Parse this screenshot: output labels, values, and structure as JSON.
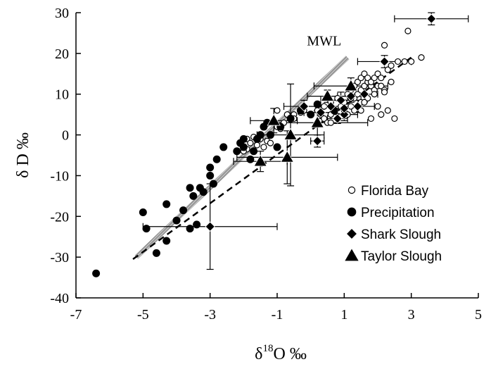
{
  "chart_data": {
    "type": "scatter",
    "xlabel_main": "δ",
    "xlabel_sup": "18",
    "xlabel_rest": "O  ‰",
    "ylabel": "δ D ‰",
    "xlim": [
      -7,
      5
    ],
    "ylim": [
      -40,
      30
    ],
    "xticks": [
      -7,
      -5,
      -3,
      -1,
      1,
      3,
      5
    ],
    "yticks": [
      -40,
      -30,
      -20,
      -10,
      0,
      10,
      20,
      30
    ],
    "grid": false,
    "legend_position": "bottom-right",
    "annotations": [
      {
        "text": "MWL",
        "x": 0.4,
        "y": 22
      }
    ],
    "lines": [
      {
        "name": "MWL",
        "style": "hatched-band",
        "x": [
          -5.2,
          1.1
        ],
        "y": [
          -30,
          19
        ]
      },
      {
        "name": "evaporation-line",
        "style": "dashed",
        "x": [
          -5.3,
          3.0
        ],
        "y": [
          -30.5,
          19
        ]
      }
    ],
    "series": [
      {
        "name": "Florida Bay",
        "marker": "open-circle",
        "points": [
          [
            -1.9,
            -1
          ],
          [
            -1.8,
            -2
          ],
          [
            -1.7,
            -0.5
          ],
          [
            -1.9,
            -3.5
          ],
          [
            -2.0,
            -4
          ],
          [
            -1.6,
            -2.5
          ],
          [
            -1.5,
            -1
          ],
          [
            -1.3,
            -1.5
          ],
          [
            -1.4,
            -3
          ],
          [
            -1.2,
            -2
          ],
          [
            -1.0,
            2
          ],
          [
            -0.8,
            3
          ],
          [
            -0.6,
            4
          ],
          [
            -0.5,
            5
          ],
          [
            -0.3,
            5.5
          ],
          [
            -0.2,
            6
          ],
          [
            -0.7,
            5
          ],
          [
            0.2,
            6
          ],
          [
            0.3,
            5
          ],
          [
            0.4,
            4
          ],
          [
            0.5,
            3
          ],
          [
            0.6,
            5
          ],
          [
            0.7,
            6
          ],
          [
            0.8,
            4
          ],
          [
            0.9,
            7
          ],
          [
            1.0,
            6
          ],
          [
            1.1,
            5
          ],
          [
            0.4,
            7
          ],
          [
            0.6,
            8
          ],
          [
            0.8,
            9
          ],
          [
            1.0,
            8
          ],
          [
            1.2,
            7
          ],
          [
            1.3,
            9
          ],
          [
            1.4,
            10
          ],
          [
            1.5,
            11
          ],
          [
            1.6,
            12
          ],
          [
            1.7,
            13
          ],
          [
            1.8,
            12
          ],
          [
            1.9,
            11
          ],
          [
            2.0,
            12
          ],
          [
            1.2,
            11
          ],
          [
            1.3,
            12
          ],
          [
            1.4,
            13
          ],
          [
            1.5,
            14
          ],
          [
            1.6,
            15
          ],
          [
            1.7,
            14
          ],
          [
            1.8,
            13
          ],
          [
            1.9,
            14
          ],
          [
            2.0,
            15
          ],
          [
            2.1,
            14
          ],
          [
            1.1,
            10
          ],
          [
            1.2,
            9
          ],
          [
            1.5,
            8
          ],
          [
            1.7,
            9
          ],
          [
            1.9,
            10
          ],
          [
            2.1,
            12
          ],
          [
            2.2,
            11
          ],
          [
            2.3,
            16
          ],
          [
            2.4,
            17
          ],
          [
            2.2,
            22
          ],
          [
            2.3,
            6
          ],
          [
            2.4,
            13
          ],
          [
            2.6,
            18
          ],
          [
            2.8,
            18
          ],
          [
            3.0,
            18
          ],
          [
            3.3,
            19
          ],
          [
            2.9,
            25.5
          ],
          [
            2.2,
            10.5
          ],
          [
            1.8,
            4
          ],
          [
            2.1,
            5
          ],
          [
            1.5,
            6
          ],
          [
            0.6,
            3
          ],
          [
            0.2,
            2.5
          ],
          [
            -0.5,
            4
          ],
          [
            -1.0,
            6
          ],
          [
            -0.9,
            1.5
          ],
          [
            1.3,
            6
          ],
          [
            1.6,
            8
          ],
          [
            2.0,
            7
          ],
          [
            2.5,
            4
          ]
        ]
      },
      {
        "name": "Precipitation",
        "marker": "filled-circle",
        "points": [
          [
            -6.4,
            -34
          ],
          [
            -5.0,
            -19
          ],
          [
            -4.9,
            -23
          ],
          [
            -4.6,
            -29
          ],
          [
            -4.3,
            -26
          ],
          [
            -4.3,
            -17
          ],
          [
            -4.0,
            -21
          ],
          [
            -3.8,
            -18.5
          ],
          [
            -3.6,
            -13
          ],
          [
            -3.5,
            -15
          ],
          [
            -3.4,
            -22
          ],
          [
            -3.3,
            -13
          ],
          [
            -3.2,
            -14
          ],
          [
            -3.0,
            -10
          ],
          [
            -3.0,
            -8
          ],
          [
            -2.8,
            -6
          ],
          [
            -2.6,
            -3
          ],
          [
            -2.2,
            -4
          ],
          [
            -2.1,
            -2
          ],
          [
            -2.0,
            -3
          ],
          [
            -1.8,
            -6
          ],
          [
            -1.7,
            -4
          ],
          [
            -1.6,
            -1
          ],
          [
            -1.5,
            0
          ],
          [
            -1.4,
            2
          ],
          [
            -1.3,
            3
          ],
          [
            -1.2,
            0
          ],
          [
            -0.9,
            2
          ],
          [
            -0.6,
            4
          ],
          [
            -0.3,
            6
          ],
          [
            0.0,
            5
          ],
          [
            0.2,
            7.5
          ],
          [
            0.7,
            6
          ],
          [
            -2.0,
            -1
          ],
          [
            -1.0,
            -3
          ],
          [
            -3.6,
            -23
          ],
          [
            -2.9,
            -12
          ]
        ]
      },
      {
        "name": "Shark Slough",
        "marker": "filled-diamond",
        "points": [
          {
            "x": -3.0,
            "y": -22.5,
            "xerr": 2.0,
            "yerr": 10.5
          },
          {
            "x": 0.2,
            "y": -1.5,
            "xerr": 0.2,
            "yerr": 1.5
          },
          {
            "x": 0.6,
            "y": 7,
            "xerr": 0.8,
            "yerr": 1.5
          },
          {
            "x": 0.8,
            "y": 4,
            "xerr": 0.3,
            "yerr": 1.2
          },
          {
            "x": 1.0,
            "y": 5,
            "xerr": 0.4,
            "yerr": 1.5
          },
          {
            "x": 0.9,
            "y": 8.5,
            "xerr": 0.6,
            "yerr": 2
          },
          {
            "x": 1.2,
            "y": 9.5,
            "xerr": 0.4,
            "yerr": 1.5
          },
          {
            "x": 1.4,
            "y": 7,
            "xerr": 0.5,
            "yerr": 1.5
          },
          {
            "x": 1.6,
            "y": 10,
            "xerr": 0.4,
            "yerr": 2
          },
          {
            "x": 2.2,
            "y": 18,
            "xerr": 0.8,
            "yerr": 1.5
          },
          {
            "x": 3.6,
            "y": 28.5,
            "xerr": 1.1,
            "yerr": 1.5
          },
          {
            "x": -0.2,
            "y": 7,
            "xerr": 0.6,
            "yerr": 1.5
          },
          {
            "x": 0.3,
            "y": 5.5,
            "xerr": 0.5,
            "yerr": 1.5
          },
          {
            "x": 1.0,
            "y": 6.5,
            "xerr": 0.4,
            "yerr": 1.2
          }
        ]
      },
      {
        "name": "Taylor Slough",
        "marker": "filled-triangle",
        "points": [
          {
            "x": -1.5,
            "y": -6.5,
            "xerr": 0.8,
            "yerr": 2.5
          },
          {
            "x": -0.7,
            "y": -5.5,
            "xerr": 1.5,
            "yerr": 6.5
          },
          {
            "x": -0.6,
            "y": 0,
            "xerr": 1.0,
            "yerr": 12.5
          },
          {
            "x": -1.1,
            "y": 3.5,
            "xerr": 0.7,
            "yerr": 3
          },
          {
            "x": 0.2,
            "y": 3,
            "xerr": 1.5,
            "yerr": 3
          },
          {
            "x": 0.5,
            "y": 9.5,
            "xerr": 0.6,
            "yerr": 1.5
          },
          {
            "x": 1.2,
            "y": 12,
            "xerr": 1.1,
            "yerr": 2
          }
        ]
      }
    ]
  }
}
